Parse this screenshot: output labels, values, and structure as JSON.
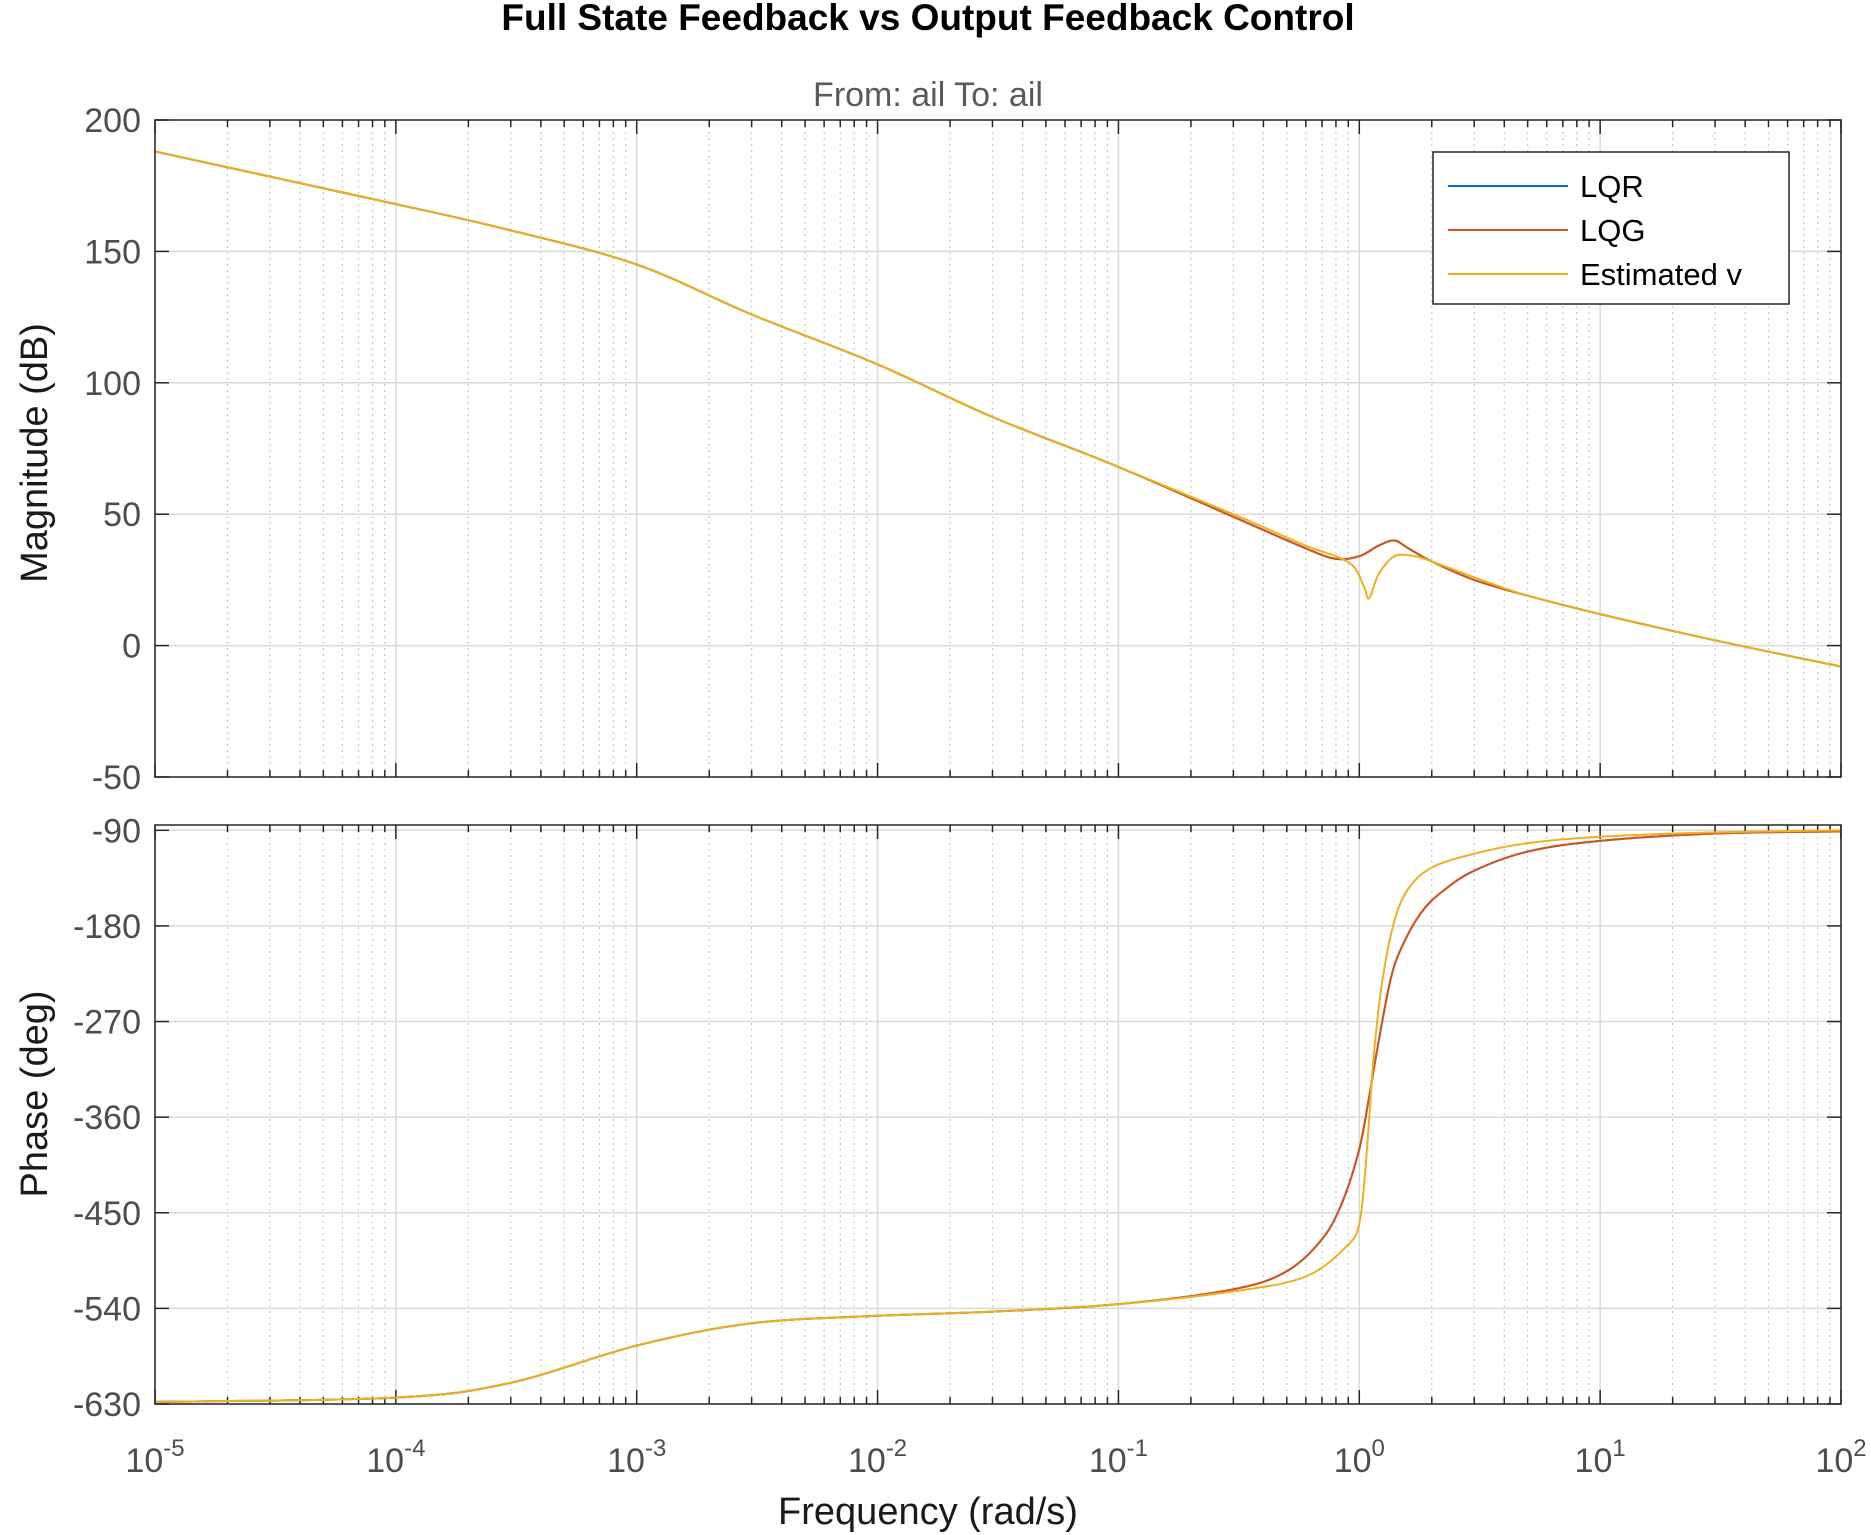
{
  "chart_data": {
    "type": "line",
    "title": "Full State Feedback vs Output Feedback Control",
    "subtitle": "From: ail  To: ail",
    "xlabel": "Frequency  (rad/s)",
    "xscale": "log",
    "xlim": [
      1e-05,
      100
    ],
    "x_ticks": [
      1e-05,
      0.0001,
      0.001,
      0.01,
      0.1,
      1,
      10,
      100
    ],
    "x_tick_labels": [
      {
        "base": "10",
        "exp": "-5"
      },
      {
        "base": "10",
        "exp": "-4"
      },
      {
        "base": "10",
        "exp": "-3"
      },
      {
        "base": "10",
        "exp": "-2"
      },
      {
        "base": "10",
        "exp": "-1"
      },
      {
        "base": "10",
        "exp": "0"
      },
      {
        "base": "10",
        "exp": "1"
      },
      {
        "base": "10",
        "exp": "2"
      }
    ],
    "grid": true,
    "legend": {
      "location": "top-right",
      "entries": [
        "LQR",
        "LQG",
        "Estimated v"
      ]
    },
    "colors": {
      "LQR": "#0072BD",
      "LQG": "#D95319",
      "Estimated v": "#EDB120"
    },
    "panels": [
      {
        "ylabel": "Magnitude (dB)",
        "ylim": [
          -50,
          200
        ],
        "yticks": [
          -50,
          0,
          50,
          100,
          150,
          200
        ],
        "series": [
          {
            "name": "LQR",
            "x": [
              1e-05,
              0.0001,
              0.0003,
              0.001,
              0.003,
              0.01,
              0.03,
              0.1,
              0.3,
              0.6,
              0.8,
              1.0,
              1.2,
              1.4,
              1.6,
              2.0,
              3.0,
              5.0,
              10,
              30,
              100
            ],
            "y": [
              188,
              168,
              158,
              145,
              126,
              107,
              87,
              68,
              49,
              37,
              33,
              34,
              38,
              40,
              37,
              32,
              25,
              19,
              12,
              2,
              -8
            ]
          },
          {
            "name": "LQG",
            "x": [
              1e-05,
              0.0001,
              0.0003,
              0.001,
              0.003,
              0.01,
              0.03,
              0.1,
              0.3,
              0.6,
              0.8,
              1.0,
              1.2,
              1.4,
              1.6,
              2.0,
              3.0,
              5.0,
              10,
              30,
              100
            ],
            "y": [
              188,
              168,
              158,
              145,
              126,
              107,
              87,
              68,
              49,
              37,
              33,
              34,
              38,
              40,
              37,
              32,
              25,
              19,
              12,
              2,
              -8
            ]
          },
          {
            "name": "Estimated v",
            "x": [
              1e-05,
              0.0001,
              0.0003,
              0.001,
              0.003,
              0.01,
              0.03,
              0.1,
              0.3,
              0.6,
              0.8,
              0.95,
              1.05,
              1.1,
              1.2,
              1.4,
              1.7,
              2.0,
              3.0,
              5.0,
              10,
              30,
              100
            ],
            "y": [
              188,
              168,
              158,
              145,
              126,
              107,
              87,
              68,
              50,
              38,
              34,
              30,
              22,
              18,
              27,
              34,
              34,
              32,
              26,
              19,
              12,
              2,
              -8
            ]
          }
        ]
      },
      {
        "ylabel": "Phase (deg)",
        "ylim": [
          -630,
          -85
        ],
        "yticks": [
          -630,
          -540,
          -450,
          -360,
          -270,
          -180,
          -90
        ],
        "series": [
          {
            "name": "LQR",
            "x": [
              1e-05,
              0.0001,
              0.0003,
              0.001,
              0.003,
              0.01,
              0.03,
              0.1,
              0.3,
              0.5,
              0.7,
              0.85,
              1.0,
              1.1,
              1.2,
              1.35,
              1.5,
              1.8,
              2.2,
              3.0,
              5.0,
              10,
              30,
              100
            ],
            "y": [
              -628,
              -624,
              -610,
              -575,
              -554,
              -547,
              -543,
              -536,
              -522,
              -505,
              -475,
              -440,
              -390,
              -340,
              -290,
              -230,
              -200,
              -168,
              -148,
              -128,
              -110,
              -100,
              -93,
              -91
            ]
          },
          {
            "name": "LQG",
            "x": [
              1e-05,
              0.0001,
              0.0003,
              0.001,
              0.003,
              0.01,
              0.03,
              0.1,
              0.3,
              0.5,
              0.7,
              0.85,
              1.0,
              1.1,
              1.2,
              1.35,
              1.5,
              1.8,
              2.2,
              3.0,
              5.0,
              10,
              30,
              100
            ],
            "y": [
              -628,
              -624,
              -610,
              -575,
              -554,
              -547,
              -543,
              -536,
              -522,
              -505,
              -475,
              -440,
              -390,
              -340,
              -290,
              -230,
              -200,
              -168,
              -148,
              -128,
              -110,
              -100,
              -93,
              -91
            ]
          },
          {
            "name": "Estimated v",
            "x": [
              1e-05,
              0.0001,
              0.0003,
              0.001,
              0.003,
              0.01,
              0.03,
              0.1,
              0.3,
              0.6,
              0.9,
              1.0,
              1.05,
              1.1,
              1.15,
              1.25,
              1.4,
              1.6,
              2.0,
              3.0,
              5.0,
              10,
              30,
              100
            ],
            "y": [
              -628,
              -624,
              -610,
              -575,
              -554,
              -547,
              -543,
              -536,
              -524,
              -510,
              -480,
              -460,
              -420,
              -360,
              -300,
              -230,
              -175,
              -145,
              -125,
              -112,
              -102,
              -96,
              -92,
              -90
            ]
          }
        ]
      }
    ]
  }
}
